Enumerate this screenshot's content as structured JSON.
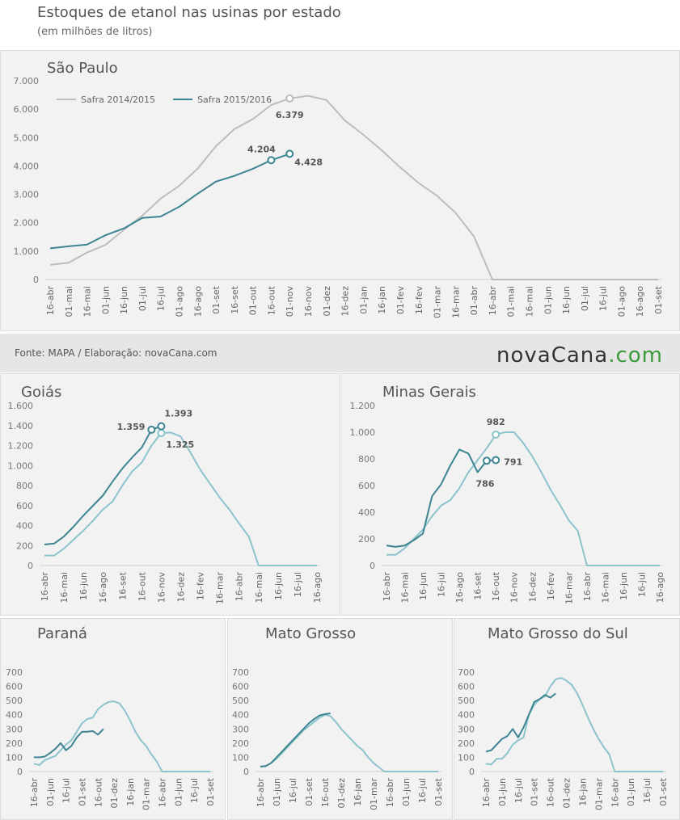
{
  "title": "Estoques de etanol nas usinas por estado",
  "subtitle": "(em milhões de litros)",
  "source": "Fonte: MAPA / Elaboração: novaCana.com",
  "logo_text": "novaCana",
  "logo_domain": ".com",
  "chart_data": [
    {
      "type": "line",
      "title": "São Paulo",
      "legend": "top-left",
      "categories": [
        "16-abr",
        "01-mai",
        "16-mai",
        "01-jun",
        "16-jun",
        "01-jul",
        "16-jul",
        "01-ago",
        "16-ago",
        "01-set",
        "16-set",
        "01-out",
        "16-out",
        "01-nov",
        "16-nov",
        "01-dez",
        "16-dez",
        "01-jan",
        "16-jan",
        "01-fev",
        "16-fev",
        "01-mar",
        "16-mar",
        "01-abr",
        "16-abr",
        "01-mai",
        "16-mai",
        "01-jun",
        "16-jun",
        "01-jul",
        "16-jul",
        "01-ago",
        "16-ago",
        "01-set"
      ],
      "series": [
        {
          "name": "Safra 2014/2015",
          "color": "#bdbdbd",
          "values": [
            520,
            590,
            950,
            1220,
            1750,
            2250,
            2850,
            3300,
            3900,
            4700,
            5300,
            5650,
            6150,
            6379,
            6470,
            6320,
            5600,
            5100,
            4550,
            3950,
            3400,
            2950,
            2350,
            1520,
            0,
            0,
            0,
            0,
            0,
            0,
            0,
            0,
            0,
            0
          ],
          "value_labels": [
            null,
            null,
            null,
            null,
            null,
            null,
            null,
            null,
            null,
            null,
            null,
            null,
            null,
            "6.379",
            null,
            null,
            null,
            null,
            null,
            null,
            null,
            null,
            null,
            null,
            null,
            null,
            null,
            null,
            null,
            null,
            null,
            null,
            null,
            null
          ]
        },
        {
          "name": "Safra 2015/2016",
          "color": "#3d8592",
          "values": [
            1100,
            1170,
            1230,
            1560,
            1800,
            2170,
            2220,
            2560,
            3020,
            3450,
            3650,
            3900,
            4204,
            4428,
            null,
            null,
            null,
            null,
            null,
            null,
            null,
            null,
            null,
            null,
            null,
            null,
            null,
            null,
            null,
            null,
            null,
            null,
            null,
            null
          ],
          "value_labels": [
            null,
            null,
            null,
            null,
            null,
            null,
            null,
            null,
            null,
            null,
            null,
            null,
            "4.204",
            "4.428",
            null,
            null,
            null,
            null,
            null,
            null,
            null,
            null,
            null,
            null,
            null,
            null,
            null,
            null,
            null,
            null,
            null,
            null,
            null,
            null
          ]
        }
      ],
      "ylim": [
        0,
        7000
      ],
      "yticks": [
        0,
        {
          "value": 1000,
          "label": "1.000"
        },
        {
          "value": 2000,
          "label": "2.000"
        },
        {
          "value": 3000,
          "label": "3.000"
        },
        {
          "value": 4000,
          "label": "4.000"
        },
        {
          "value": 5000,
          "label": "5.000"
        },
        {
          "value": 6000,
          "label": "6.000"
        },
        {
          "value": 7000,
          "label": "7.000"
        }
      ]
    },
    {
      "type": "line",
      "title": "Goiás",
      "categories": [
        "16-abr",
        null,
        "16-mai",
        null,
        "16-jun",
        null,
        "16-ago",
        null,
        "16-set",
        null,
        "16-out",
        null,
        "16-nov",
        null,
        "16-dez",
        null,
        "16-fev",
        null,
        "16-mar",
        null,
        "16-abr",
        null,
        "16-mai",
        null,
        "16-jun",
        null,
        "16-jul",
        null,
        "16-ago"
      ],
      "series": [
        {
          "color": "#8cc4cc",
          "values": [
            100,
            100,
            170,
            260,
            350,
            450,
            560,
            640,
            800,
            940,
            1030,
            1200,
            1325,
            1330,
            1290,
            1130,
            960,
            820,
            680,
            560,
            420,
            290,
            0,
            0,
            0,
            0,
            0,
            0,
            0
          ],
          "value_labels": [
            null,
            null,
            null,
            null,
            null,
            null,
            null,
            null,
            null,
            null,
            null,
            null,
            "1.325",
            null,
            null,
            null,
            null,
            null,
            null,
            null,
            null,
            null,
            null,
            null,
            null,
            null,
            null,
            null,
            null
          ]
        },
        {
          "color": "#3d8592",
          "values": [
            210,
            220,
            290,
            390,
            500,
            600,
            700,
            840,
            970,
            1080,
            1180,
            1359,
            1393,
            null,
            null,
            null,
            null,
            null,
            null,
            null,
            null,
            null,
            null,
            null,
            null,
            null,
            null,
            null,
            null
          ],
          "value_labels": [
            null,
            null,
            null,
            null,
            null,
            null,
            null,
            null,
            null,
            null,
            null,
            "1.359",
            "1.393",
            null,
            null,
            null,
            null,
            null,
            null,
            null,
            null,
            null,
            null,
            null,
            null,
            null,
            null,
            null,
            null
          ]
        }
      ],
      "ylim": [
        0,
        1600
      ],
      "yticks": [
        0,
        200,
        400,
        600,
        800,
        {
          "value": 1000,
          "label": "1.000"
        },
        {
          "value": 1200,
          "label": "1.200"
        },
        {
          "value": 1400,
          "label": "1.400"
        },
        {
          "value": 1600,
          "label": "1.600"
        }
      ]
    },
    {
      "type": "line",
      "title": "Minas Gerais",
      "categories": [
        "16-abr",
        null,
        "16-mai",
        null,
        "16-jun",
        null,
        "16-jul",
        null,
        "16-ago",
        null,
        "16-set",
        null,
        "16-out",
        null,
        "16-nov",
        null,
        "16-dez",
        null,
        "16-fev",
        null,
        "16-mar",
        null,
        "16-abr",
        null,
        "16-mai",
        null,
        "16-jun",
        null,
        "16-jul",
        null,
        "16-ago"
      ],
      "series": [
        {
          "color": "#8cc4cc",
          "values": [
            80,
            80,
            130,
            200,
            270,
            370,
            450,
            490,
            580,
            700,
            790,
            880,
            982,
            1000,
            1000,
            920,
            820,
            700,
            570,
            460,
            340,
            260,
            0,
            0,
            0,
            0,
            0,
            0,
            0,
            0,
            0
          ],
          "labeled_points": [
            12
          ]
        },
        {
          "color": "#3d8592",
          "values": [
            150,
            140,
            150,
            190,
            240,
            520,
            610,
            750,
            870,
            840,
            700,
            786,
            791,
            null,
            null,
            null,
            null,
            null,
            null,
            null,
            null,
            null,
            null,
            null,
            null,
            null,
            null,
            null,
            null,
            null,
            null
          ],
          "labeled_points": [
            11,
            12
          ]
        }
      ],
      "ylim": [
        0,
        1200
      ],
      "yticks": [
        0,
        200,
        400,
        600,
        800,
        {
          "value": 1000,
          "label": "1.000"
        },
        {
          "value": 1200,
          "label": "1.200"
        }
      ]
    },
    {
      "type": "line",
      "title": "Paraná",
      "categories": [
        "16-abr",
        null,
        null,
        "01-jun",
        null,
        null,
        "16-jul",
        null,
        null,
        "01-set",
        null,
        null,
        "16-out",
        null,
        null,
        "01-dez",
        null,
        null,
        "16-jan",
        null,
        null,
        "01-mar",
        null,
        null,
        "16-abr",
        null,
        null,
        "01-jun",
        null,
        null,
        "16-jul",
        null,
        null,
        "01-set"
      ],
      "series": [
        {
          "color": "#8cc4cc",
          "values": [
            55,
            45,
            80,
            95,
            110,
            150,
            190,
            220,
            280,
            340,
            370,
            380,
            440,
            470,
            490,
            495,
            480,
            430,
            360,
            280,
            220,
            180,
            120,
            70,
            0,
            0,
            0,
            0,
            0,
            0,
            0,
            0,
            0,
            0
          ]
        },
        {
          "color": "#3d8592",
          "values": [
            100,
            100,
            105,
            130,
            160,
            200,
            150,
            180,
            240,
            280,
            280,
            285,
            260,
            300,
            null,
            null,
            null,
            null,
            null,
            null,
            null,
            null,
            null,
            null,
            null,
            null,
            null,
            null,
            null,
            null,
            null,
            null,
            null,
            null
          ]
        }
      ],
      "ylim": [
        0,
        700
      ],
      "yticks": [
        0,
        100,
        200,
        300,
        400,
        500,
        600,
        700
      ]
    },
    {
      "type": "line",
      "title": "Mato Grosso",
      "categories": [
        "16-abr",
        null,
        null,
        "01-jun",
        null,
        null,
        "16-jul",
        null,
        null,
        "01-set",
        null,
        null,
        "16-out",
        null,
        null,
        "01-dez",
        null,
        null,
        "16-jan",
        null,
        null,
        "01-mar",
        null,
        null,
        "16-abr",
        null,
        null,
        "01-jun",
        null,
        null,
        "16-jul",
        null,
        null,
        "01-set"
      ],
      "series": [
        {
          "color": "#8cc4cc",
          "values": [
            35,
            40,
            60,
            90,
            130,
            170,
            210,
            250,
            290,
            320,
            350,
            380,
            400,
            390,
            350,
            300,
            260,
            220,
            180,
            150,
            100,
            60,
            30,
            0,
            0,
            0,
            0,
            0,
            0,
            0,
            0,
            0,
            0,
            0
          ]
        },
        {
          "color": "#3d8592",
          "values": [
            35,
            38,
            60,
            100,
            140,
            180,
            220,
            260,
            300,
            340,
            370,
            395,
            405,
            410,
            null,
            null,
            null,
            null,
            null,
            null,
            null,
            null,
            null,
            null,
            null,
            null,
            null,
            null,
            null,
            null,
            null,
            null,
            null,
            null
          ]
        }
      ],
      "ylim": [
        0,
        700
      ],
      "yticks": [
        0,
        100,
        200,
        300,
        400,
        500,
        600,
        700
      ]
    },
    {
      "type": "line",
      "title": "Mato Grosso do Sul",
      "categories": [
        "16-abr",
        null,
        null,
        "01-jun",
        null,
        null,
        "16-jul",
        null,
        null,
        "01-set",
        null,
        null,
        "16-out",
        null,
        null,
        "01-dez",
        null,
        null,
        "16-jan",
        null,
        null,
        "01-mar",
        null,
        null,
        "16-abr",
        null,
        null,
        "01-jun",
        null,
        null,
        "16-jul",
        null,
        null,
        "01-set"
      ],
      "series": [
        {
          "color": "#8cc4cc",
          "values": [
            55,
            50,
            90,
            90,
            130,
            190,
            220,
            240,
            400,
            470,
            510,
            530,
            600,
            650,
            660,
            640,
            610,
            550,
            470,
            380,
            300,
            230,
            170,
            120,
            0,
            0,
            0,
            0,
            0,
            0,
            0,
            0,
            0,
            0
          ]
        },
        {
          "color": "#3d8592",
          "values": [
            140,
            150,
            190,
            230,
            250,
            300,
            240,
            310,
            400,
            490,
            510,
            540,
            520,
            550,
            null,
            null,
            null,
            null,
            null,
            null,
            null,
            null,
            null,
            null,
            null,
            null,
            null,
            null,
            null,
            null,
            null,
            null,
            null,
            null
          ]
        }
      ],
      "ylim": [
        0,
        700
      ],
      "yticks": [
        0,
        100,
        200,
        300,
        400,
        500,
        600,
        700
      ]
    }
  ]
}
